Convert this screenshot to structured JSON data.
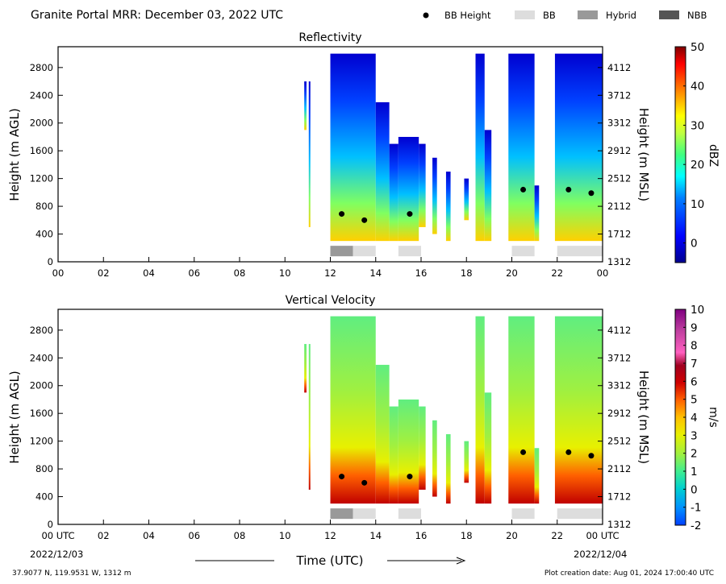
{
  "header": {
    "title": "Granite Portal MRR:  December 03, 2022 UTC",
    "legend": [
      {
        "label": "BB Height",
        "symbol": "dot",
        "color": "#000000"
      },
      {
        "label": "BB",
        "symbol": "swatch",
        "color": "#dddddd"
      },
      {
        "label": "Hybrid",
        "symbol": "swatch",
        "color": "#999999"
      },
      {
        "label": "NBB",
        "symbol": "swatch",
        "color": "#555555"
      }
    ]
  },
  "footer": {
    "location": "37.9077 N, 119.9531 W, 1312 m",
    "creation": "Plot creation date: Aug 01, 2024 17:00:40 UTC",
    "xlabel": "Time (UTC)",
    "start_date": "2022/12/03",
    "end_date": "2022/12/04"
  },
  "colors": {
    "bb": "#dddddd",
    "hybrid": "#999999",
    "nbb": "#555555",
    "bb_height": "#000000"
  },
  "chart_data": [
    {
      "type": "heatmap",
      "title": "Reflectivity",
      "ylabel": "Height (m AGL)",
      "ylabel_right": "Height (m MSL)",
      "x_ticks": [
        "00",
        "02",
        "04",
        "06",
        "08",
        "10",
        "12",
        "14",
        "16",
        "18",
        "20",
        "22",
        "00"
      ],
      "xlim_hours": [
        0,
        24
      ],
      "y_ticks": [
        0,
        400,
        800,
        1200,
        1600,
        2000,
        2400,
        2800
      ],
      "y_ticks_right": [
        1312,
        1712,
        2112,
        2512,
        2912,
        3312,
        3712,
        4112
      ],
      "ylim": [
        0,
        3100
      ],
      "data_ylim": [
        300,
        3000
      ],
      "colorbar": {
        "label": "dBZ",
        "range": [
          -5,
          50
        ],
        "ticks": [
          "0",
          "10",
          "20",
          "30",
          "40",
          "50"
        ]
      },
      "bb_height": [
        {
          "hour": 12.5,
          "height": 690
        },
        {
          "hour": 13.5,
          "height": 600
        },
        {
          "hour": 15.5,
          "height": 690
        },
        {
          "hour": 20.5,
          "height": 1040
        },
        {
          "hour": 22.5,
          "height": 1040
        },
        {
          "hour": 23.5,
          "height": 990
        }
      ],
      "bb_flags": [
        {
          "start": 12.0,
          "end": 13.0,
          "type": "hybrid"
        },
        {
          "start": 13.0,
          "end": 14.0,
          "type": "bb"
        },
        {
          "start": 15.0,
          "end": 16.0,
          "type": "bb"
        },
        {
          "start": 20.0,
          "end": 21.0,
          "type": "bb"
        },
        {
          "start": 22.0,
          "end": 24.0,
          "type": "bb"
        }
      ]
    },
    {
      "type": "heatmap",
      "title": "Vertical Velocity",
      "ylabel": "Height (m AGL)",
      "ylabel_right": "Height (m MSL)",
      "x_ticks": [
        "00 UTC",
        "02",
        "04",
        "06",
        "08",
        "10",
        "12",
        "14",
        "16",
        "18",
        "20",
        "22",
        "00 UTC"
      ],
      "xlim_hours": [
        0,
        24
      ],
      "y_ticks": [
        0,
        400,
        800,
        1200,
        1600,
        2000,
        2400,
        2800
      ],
      "y_ticks_right": [
        1312,
        1712,
        2112,
        2512,
        2912,
        3312,
        3712,
        4112
      ],
      "ylim": [
        0,
        3100
      ],
      "data_ylim": [
        300,
        3000
      ],
      "colorbar": {
        "label": "m/s",
        "range": [
          -2,
          10
        ],
        "ticks": [
          "-2",
          "-1",
          "0",
          "1",
          "2",
          "3",
          "4",
          "5",
          "6",
          "7",
          "8",
          "9",
          "10"
        ]
      },
      "bb_height": [
        {
          "hour": 12.5,
          "height": 690
        },
        {
          "hour": 13.5,
          "height": 600
        },
        {
          "hour": 15.5,
          "height": 690
        },
        {
          "hour": 20.5,
          "height": 1040
        },
        {
          "hour": 22.5,
          "height": 1040
        },
        {
          "hour": 23.5,
          "height": 990
        }
      ],
      "bb_flags": [
        {
          "start": 12.0,
          "end": 13.0,
          "type": "hybrid"
        },
        {
          "start": 13.0,
          "end": 14.0,
          "type": "bb"
        },
        {
          "start": 15.0,
          "end": 16.0,
          "type": "bb"
        },
        {
          "start": 20.0,
          "end": 21.0,
          "type": "bb"
        },
        {
          "start": 22.0,
          "end": 24.0,
          "type": "bb"
        }
      ]
    }
  ],
  "echo_segments": [
    {
      "start": 10.85,
      "end": 10.95,
      "top": 2600,
      "bottom": 1900
    },
    {
      "start": 11.05,
      "end": 11.12,
      "top": 2600,
      "bottom": 500
    },
    {
      "start": 12.0,
      "end": 14.0,
      "top": 3000,
      "bottom": 300
    },
    {
      "start": 14.0,
      "end": 14.6,
      "top": 2300,
      "bottom": 300
    },
    {
      "start": 14.6,
      "end": 15.0,
      "top": 1700,
      "bottom": 300
    },
    {
      "start": 15.0,
      "end": 15.9,
      "top": 1800,
      "bottom": 300
    },
    {
      "start": 15.9,
      "end": 16.2,
      "top": 1700,
      "bottom": 500
    },
    {
      "start": 16.5,
      "end": 16.7,
      "top": 1500,
      "bottom": 400
    },
    {
      "start": 17.1,
      "end": 17.3,
      "top": 1300,
      "bottom": 300
    },
    {
      "start": 17.9,
      "end": 18.1,
      "top": 1200,
      "bottom": 600
    },
    {
      "start": 18.4,
      "end": 18.8,
      "top": 3000,
      "bottom": 300
    },
    {
      "start": 18.8,
      "end": 19.1,
      "top": 1900,
      "bottom": 300
    },
    {
      "start": 19.85,
      "end": 21.0,
      "top": 3000,
      "bottom": 300
    },
    {
      "start": 21.0,
      "end": 21.2,
      "top": 1100,
      "bottom": 300
    },
    {
      "start": 21.9,
      "end": 24.0,
      "top": 3000,
      "bottom": 300
    }
  ]
}
